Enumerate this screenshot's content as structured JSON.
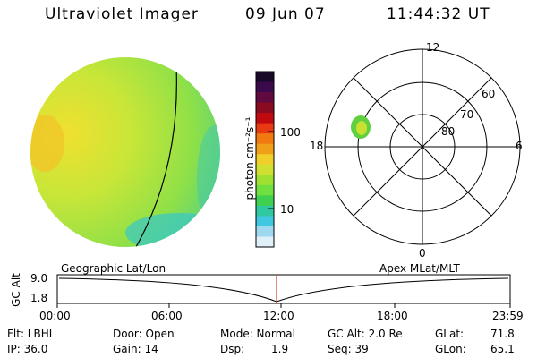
{
  "header": {
    "instrument": "Ultraviolet Imager",
    "date": "09 Jun 07",
    "time": "11:44:32 UT"
  },
  "colorbar": {
    "label": "photon cm⁻²s⁻¹",
    "ticks": [
      "100",
      "10"
    ],
    "colors": [
      "#1a0a2a",
      "#3a0a4a",
      "#600a40",
      "#8a0a20",
      "#c00a10",
      "#e83a10",
      "#f07a10",
      "#f0a018",
      "#f0d028",
      "#d0e030",
      "#a0e030",
      "#70e040",
      "#40d050",
      "#30c8a0",
      "#40c8e0",
      "#a0d8f0",
      "#e0f0f8"
    ]
  },
  "polar_plot": {
    "lat_labels": [
      "60",
      "70",
      "80"
    ],
    "mlt_labels": {
      "top": "12",
      "left": "18",
      "right": "6",
      "bottom": "0"
    }
  },
  "timeline": {
    "left_title": "Geographic Lat/Lon",
    "right_title": "Apex MLat/MLT",
    "y_axis_label": "GC Alt",
    "y_ticks": [
      "9.0",
      "1.8"
    ],
    "x_ticks": [
      "00:00",
      "06:00",
      "12:00",
      "18:00",
      "23:59"
    ],
    "marker_color": "#d04030"
  },
  "info": {
    "flt": "Flt: LBHL",
    "ip": "IP: 36.0",
    "door": "Door: Open",
    "gain": "Gain: 14",
    "mode": "Mode: Normal",
    "dsp_label": "Dsp:",
    "dsp_value": "1.9",
    "gc_alt": "GC Alt: 2.0 Re",
    "seq": "Seq: 39",
    "glat_label": "GLat:",
    "glat_value": "71.8",
    "glon_label": "GLon:",
    "glon_value": "65.1"
  }
}
